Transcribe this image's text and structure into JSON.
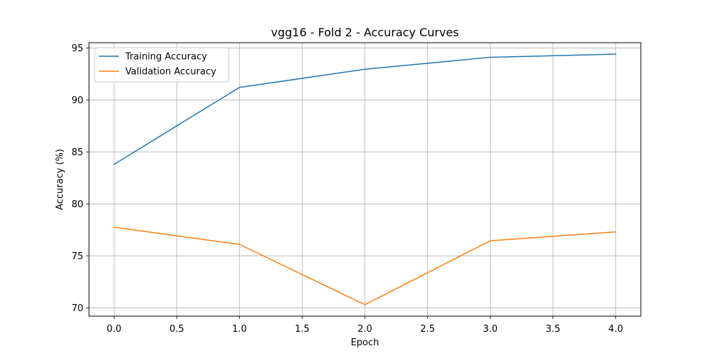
{
  "chart_data": {
    "type": "line",
    "title": "vgg16 - Fold 2 - Accuracy Curves",
    "xlabel": "Epoch",
    "ylabel": "Accuracy (%)",
    "xlim": [
      -0.2,
      4.2
    ],
    "ylim": [
      69.2,
      95.5
    ],
    "xticks": [
      0.0,
      0.5,
      1.0,
      1.5,
      2.0,
      2.5,
      3.0,
      3.5,
      4.0
    ],
    "xtick_labels": [
      "0.0",
      "0.5",
      "1.0",
      "1.5",
      "2.0",
      "2.5",
      "3.0",
      "3.5",
      "4.0"
    ],
    "yticks": [
      70,
      75,
      80,
      85,
      90,
      95
    ],
    "ytick_labels": [
      "70",
      "75",
      "80",
      "85",
      "90",
      "95"
    ],
    "grid": true,
    "legend_position": "top-left",
    "x": [
      0,
      1,
      2,
      3,
      4
    ],
    "series": [
      {
        "name": "Training Accuracy",
        "color": "#1f77b4",
        "values": [
          83.8,
          91.2,
          92.95,
          94.1,
          94.4
        ]
      },
      {
        "name": "Validation Accuracy",
        "color": "#ff7f0e",
        "values": [
          77.75,
          76.1,
          70.3,
          76.45,
          77.3
        ]
      }
    ]
  }
}
